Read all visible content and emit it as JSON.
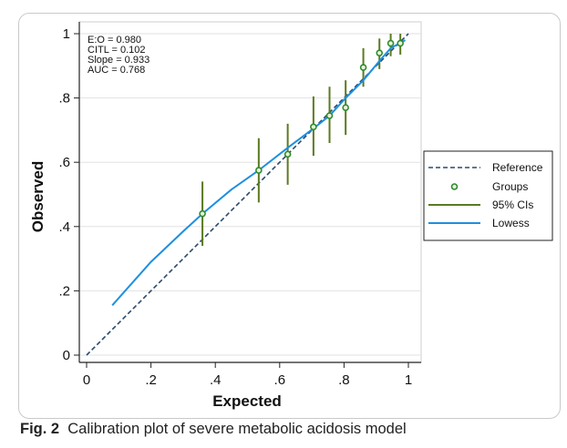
{
  "chart_data": {
    "type": "scatter",
    "xlabel": "Expected",
    "ylabel": "Observed",
    "xlim": [
      0,
      1
    ],
    "ylim": [
      0,
      1
    ],
    "x_ticks": [
      0,
      0.2,
      0.4,
      0.6,
      0.8,
      1
    ],
    "y_ticks": [
      0,
      0.2,
      0.4,
      0.6,
      0.8,
      1
    ],
    "x_tick_labels": [
      "0",
      ".2",
      ".4",
      ".6",
      ".8",
      "1"
    ],
    "y_tick_labels": [
      "0",
      ".2",
      ".4",
      ".6",
      ".8",
      "1"
    ],
    "grid": true,
    "legend_position": "right",
    "annotations": [
      "E:O = 0.980",
      "CITL = 0.102",
      "Slope = 0.933",
      "AUC = 0.768"
    ],
    "series": [
      {
        "name": "Reference",
        "style": "dashed-line",
        "color": "#2a4a6b",
        "x": [
          0,
          1
        ],
        "y": [
          0,
          1
        ]
      },
      {
        "name": "Groups",
        "style": "points",
        "color": "#2e8b2e",
        "x": [
          0.36,
          0.535,
          0.625,
          0.705,
          0.755,
          0.805,
          0.86,
          0.91,
          0.945,
          0.975
        ],
        "y": [
          0.44,
          0.575,
          0.625,
          0.71,
          0.745,
          0.77,
          0.895,
          0.94,
          0.97,
          0.97
        ]
      },
      {
        "name": "95% CIs",
        "style": "vertical-intervals",
        "color": "#5a7a20",
        "x": [
          0.36,
          0.535,
          0.625,
          0.705,
          0.755,
          0.805,
          0.86,
          0.91,
          0.945,
          0.975
        ],
        "lower": [
          0.34,
          0.475,
          0.53,
          0.62,
          0.66,
          0.685,
          0.835,
          0.89,
          0.93,
          0.935
        ],
        "upper": [
          0.54,
          0.675,
          0.72,
          0.805,
          0.835,
          0.855,
          0.955,
          0.985,
          1.0,
          1.0
        ]
      },
      {
        "name": "Lowess",
        "style": "line",
        "color": "#1e8fe0",
        "x": [
          0.08,
          0.2,
          0.3,
          0.36,
          0.45,
          0.535,
          0.625,
          0.705,
          0.755,
          0.805,
          0.86,
          0.91,
          0.945,
          0.99
        ],
        "y": [
          0.155,
          0.29,
          0.385,
          0.44,
          0.515,
          0.575,
          0.645,
          0.705,
          0.745,
          0.8,
          0.855,
          0.915,
          0.955,
          0.98
        ]
      }
    ]
  },
  "caption": {
    "label": "Fig. 2",
    "text": "Calibration plot of severe metabolic acidosis model"
  }
}
